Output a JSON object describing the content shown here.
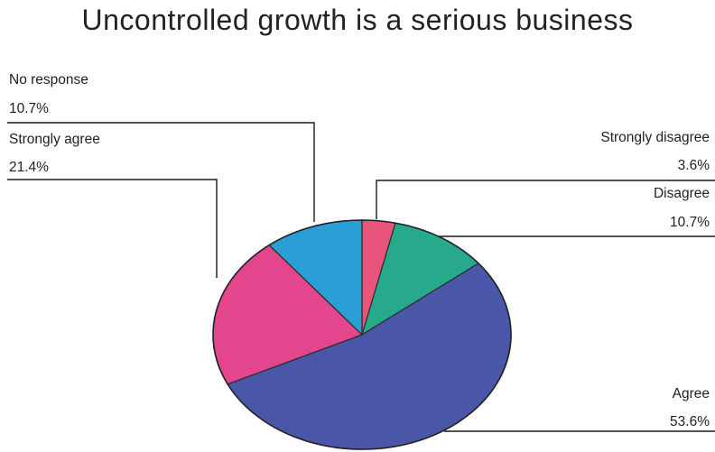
{
  "chart_data": {
    "type": "pie",
    "title": "Uncontrolled growth is a serious business",
    "slices": [
      {
        "label": "Strongly disagree",
        "value": 3.6,
        "value_label": "3.6%",
        "color": "#e8547a"
      },
      {
        "label": "Disagree",
        "value": 10.7,
        "value_label": "10.7%",
        "color": "#27a98c"
      },
      {
        "label": "Agree",
        "value": 53.6,
        "value_label": "53.6%",
        "color": "#4a57a8"
      },
      {
        "label": "Strongly agree",
        "value": 21.4,
        "value_label": "21.4%",
        "color": "#e3468c"
      },
      {
        "label": "No response",
        "value": 10.7,
        "value_label": "10.7%",
        "color": "#2a9fd6"
      }
    ],
    "legend": "none",
    "start": "top",
    "direction": "clockwise"
  }
}
